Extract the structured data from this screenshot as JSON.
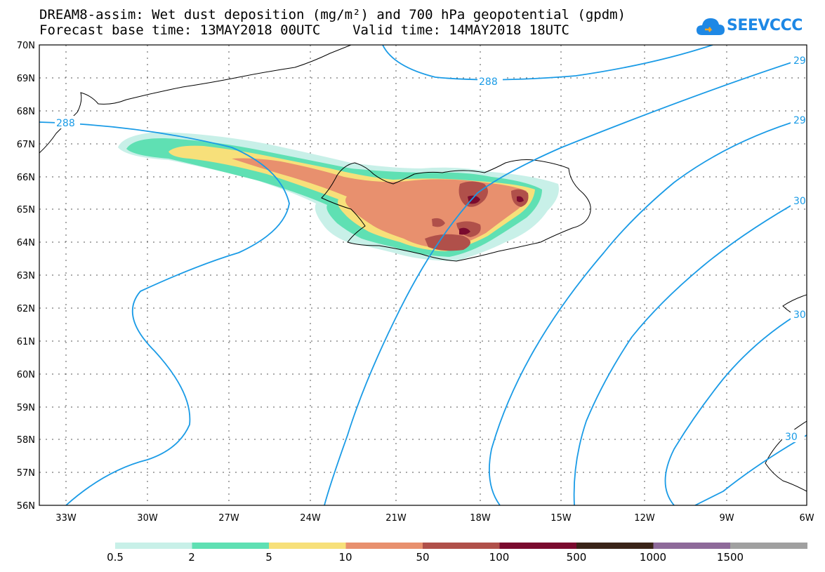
{
  "title": {
    "line1": "DREAM8-assim: Wet dust deposition (mg/m²) and 700 hPa geopotential (gpdm)",
    "line2": "Forecast base time: 13MAY2018 00UTC    Valid time: 14MAY2018 18UTC"
  },
  "logo": {
    "text": "SEEVCCC"
  },
  "axes": {
    "lat_labels": [
      "70N",
      "69N",
      "68N",
      "67N",
      "66N",
      "65N",
      "64N",
      "63N",
      "62N",
      "61N",
      "60N",
      "59N",
      "58N",
      "57N",
      "56N"
    ],
    "lon_labels": [
      "33W",
      "30W",
      "27W",
      "24W",
      "21W",
      "18W",
      "15W",
      "12W",
      "9W",
      "6W"
    ]
  },
  "contours": {
    "labels": [
      "288",
      "288",
      "29",
      "29",
      "30",
      "30",
      "30"
    ]
  },
  "legend": {
    "colors": [
      "#c8f0e8",
      "#5fe0b3",
      "#f7e07a",
      "#e8906e",
      "#b0504a",
      "#7a0a2e",
      "#3a2418",
      "#8e6a9a",
      "#a0a0a0"
    ],
    "labels": [
      "0.5",
      "2",
      "5",
      "10",
      "50",
      "100",
      "500",
      "1000",
      "1500"
    ]
  }
}
